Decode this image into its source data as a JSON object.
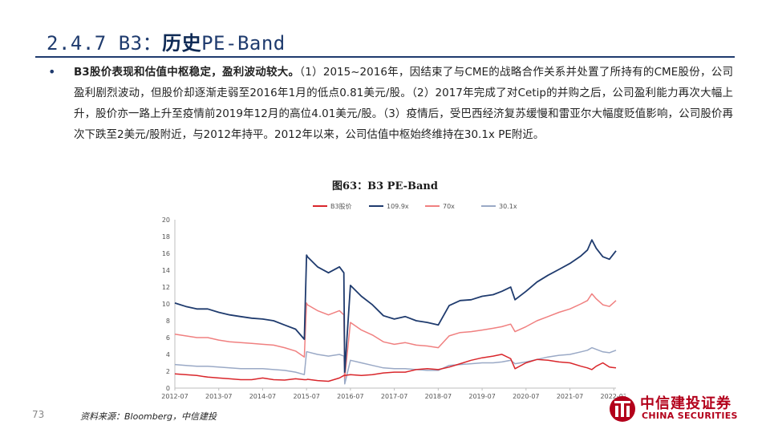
{
  "header": {
    "section_number": "2.4.7 B3：",
    "section_title_em": "历史",
    "section_title_rest": "PE-Band"
  },
  "body": {
    "bullet": "•",
    "lead_bold": "B3股价表现和估值中枢稳定，盈利波动较大。",
    "text": "（1）2015~2016年，因结束了与CME的战略合作关系并处置了所持有的CME股份，公司盈利剧烈波动，但股价却逐渐走弱至2016年1月的低点0.81美元/股。（2）2017年完成了对Cetip的并购之后，公司盈利能力再次大幅上升，股价亦一路上升至疫情前2019年12月的高位4.01美元/股。（3）疫情后，受巴西经济复苏缓慢和雷亚尔大幅度贬值影响，公司股价再次下跌至2美元/股附近，与2012年持平。2012年以来，公司估值中枢始终维持在30.1x PE附近。"
  },
  "figure": {
    "title": "图63：B3 PE-Band"
  },
  "footer": {
    "page_number": "73",
    "source": "资料来源：Bloomberg，中信建投"
  },
  "logo": {
    "cn": "中信建投证券",
    "en": "CHINA SECURITIES"
  },
  "chart_data": {
    "type": "line",
    "title": "",
    "xlabel": "",
    "ylabel": "",
    "ylim": [
      0,
      20
    ],
    "yticks": [
      "0",
      "2",
      "4",
      "6",
      "8",
      "10",
      "12",
      "14",
      "16",
      "18",
      "20"
    ],
    "xticks": [
      "2012-07",
      "2013-07",
      "2014-07",
      "2015-07",
      "2016-07",
      "2017-07",
      "2018-07",
      "2019-07",
      "2020-07",
      "2021-07",
      "2022-07"
    ],
    "xticks_years": [
      2012.5,
      2013.5,
      2014.5,
      2015.5,
      2016.5,
      2017.5,
      2018.5,
      2019.5,
      2020.5,
      2021.5,
      2022.5
    ],
    "x_range": [
      2012.5,
      2022.55
    ],
    "grid": false,
    "legend_position": "top",
    "x": [
      2012.5,
      2012.75,
      2013.0,
      2013.25,
      2013.5,
      2013.75,
      2014.0,
      2014.25,
      2014.5,
      2014.75,
      2015.0,
      2015.25,
      2015.45,
      2015.5,
      2015.52,
      2015.75,
      2016.0,
      2016.25,
      2016.35,
      2016.37,
      2016.5,
      2016.75,
      2017.0,
      2017.25,
      2017.5,
      2017.75,
      2018.0,
      2018.25,
      2018.5,
      2018.75,
      2019.0,
      2019.25,
      2019.5,
      2019.75,
      2019.95,
      2020.15,
      2020.25,
      2020.5,
      2020.75,
      2021.0,
      2021.25,
      2021.5,
      2021.75,
      2021.9,
      2022.0,
      2022.1,
      2022.25,
      2022.4,
      2022.55
    ],
    "series": [
      {
        "name": "B3股价",
        "color": "#d9262b",
        "values": [
          1.7,
          1.6,
          1.5,
          1.3,
          1.2,
          1.1,
          1.0,
          1.0,
          1.2,
          1.0,
          0.95,
          1.1,
          1.0,
          1.0,
          1.05,
          0.9,
          0.81,
          1.2,
          1.5,
          1.5,
          1.6,
          1.5,
          1.6,
          1.8,
          1.9,
          1.9,
          2.2,
          2.3,
          2.2,
          2.5,
          2.9,
          3.3,
          3.6,
          3.8,
          4.01,
          3.5,
          2.3,
          3.0,
          3.4,
          3.3,
          3.1,
          3.0,
          2.6,
          2.4,
          2.2,
          2.6,
          3.0,
          2.5,
          2.4
        ]
      },
      {
        "name": "109.9x",
        "color": "#1f3b6e",
        "values": [
          10.1,
          9.7,
          9.4,
          9.4,
          9.0,
          8.7,
          8.5,
          8.3,
          8.2,
          8.0,
          7.5,
          7.0,
          5.8,
          15.8,
          15.6,
          14.4,
          13.7,
          14.4,
          13.7,
          1.9,
          12.2,
          10.9,
          9.9,
          8.6,
          8.2,
          8.5,
          8.0,
          7.8,
          7.5,
          9.8,
          10.4,
          10.5,
          10.9,
          11.1,
          11.5,
          12.0,
          10.5,
          11.5,
          12.6,
          13.4,
          14.1,
          14.8,
          15.7,
          16.4,
          17.6,
          16.6,
          15.6,
          15.3,
          16.3
        ]
      },
      {
        "name": "70x",
        "color": "#f08080",
        "values": [
          6.4,
          6.2,
          6.0,
          6.0,
          5.7,
          5.5,
          5.4,
          5.3,
          5.2,
          5.1,
          4.8,
          4.4,
          3.7,
          10.1,
          9.9,
          9.2,
          8.7,
          9.2,
          8.7,
          1.2,
          7.8,
          6.9,
          6.3,
          5.5,
          5.2,
          5.4,
          5.1,
          5.0,
          4.8,
          6.2,
          6.6,
          6.7,
          6.9,
          7.1,
          7.3,
          7.6,
          6.7,
          7.3,
          8.0,
          8.5,
          9.0,
          9.4,
          10.0,
          10.4,
          11.2,
          10.6,
          9.9,
          9.7,
          10.4
        ]
      },
      {
        "name": "30.1x",
        "color": "#9aa9c6",
        "values": [
          2.8,
          2.7,
          2.6,
          2.6,
          2.5,
          2.4,
          2.3,
          2.3,
          2.3,
          2.2,
          2.1,
          1.9,
          1.6,
          4.3,
          4.3,
          4.0,
          3.8,
          4.0,
          3.8,
          0.5,
          3.3,
          3.0,
          2.7,
          2.4,
          2.3,
          2.3,
          2.2,
          2.1,
          2.1,
          2.7,
          2.8,
          2.9,
          3.0,
          3.0,
          3.1,
          3.3,
          2.9,
          3.1,
          3.4,
          3.7,
          3.9,
          4.0,
          4.3,
          4.5,
          4.8,
          4.6,
          4.3,
          4.2,
          4.5
        ]
      }
    ]
  }
}
